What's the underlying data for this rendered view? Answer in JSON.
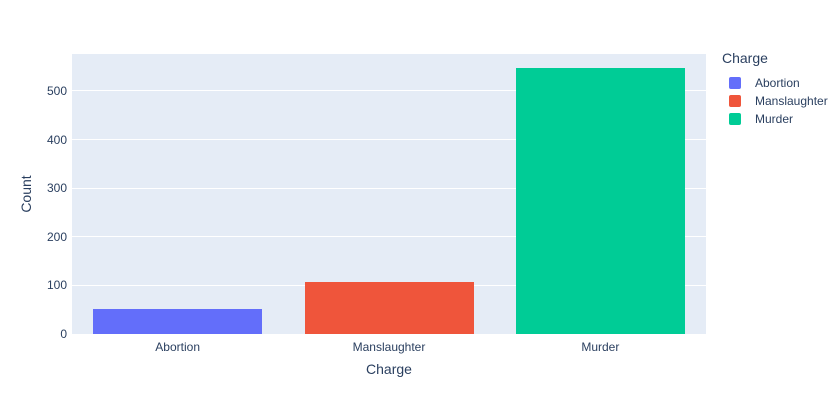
{
  "chart_data": {
    "type": "bar",
    "title": "",
    "categories": [
      "Abortion",
      "Manslaughter",
      "Murder"
    ],
    "values": [
      52,
      107,
      548
    ],
    "colors": [
      "#636efa",
      "#ef553b",
      "#00cc96"
    ],
    "xlabel": "Charge",
    "ylabel": "Count",
    "yticks": [
      0,
      100,
      200,
      300,
      400,
      500
    ],
    "ylim": [
      0,
      576
    ],
    "grid": true,
    "gridcolor": "#ffffff",
    "plot_bgcolor": "#e5ecf6",
    "text_color": "#2a3f5f",
    "legend": {
      "title": "Charge",
      "position": "right",
      "entries": [
        {
          "label": "Abortion",
          "color": "#636efa"
        },
        {
          "label": "Manslaughter",
          "color": "#ef553b"
        },
        {
          "label": "Murder",
          "color": "#00cc96"
        }
      ]
    }
  }
}
